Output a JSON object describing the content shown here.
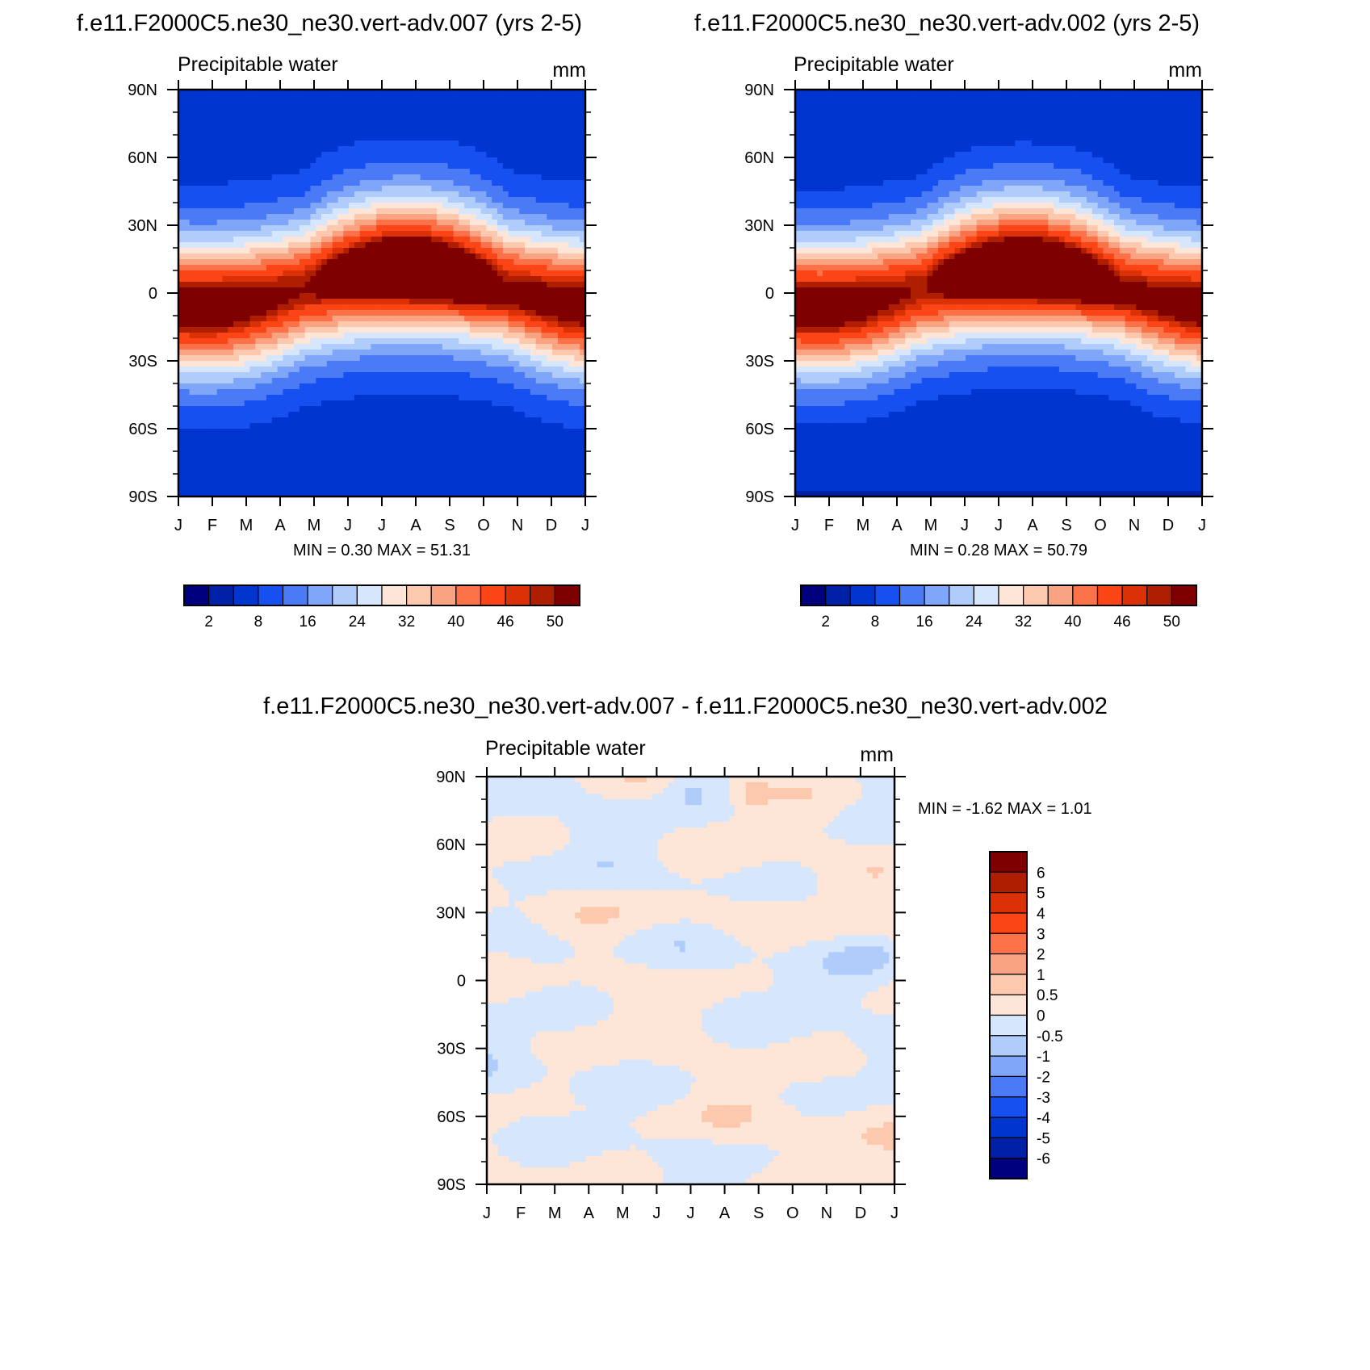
{
  "palette": {
    "abs": [
      "#00007f",
      "#0020a8",
      "#0035d0",
      "#1750f0",
      "#4a7af6",
      "#80a6fa",
      "#b0ccfb",
      "#d6e6fc",
      "#fde6d8",
      "#fcc8ae",
      "#f9a383",
      "#fb7148",
      "#fb4516",
      "#dc3106",
      "#b01e02",
      "#7f0000"
    ],
    "diff": [
      "#00007f",
      "#0020a8",
      "#0035d0",
      "#1750f0",
      "#4a7af6",
      "#80a6fa",
      "#b0ccfb",
      "#d6e6fc",
      "#fde6d8",
      "#fcc8ae",
      "#f9a383",
      "#fb7148",
      "#fb4516",
      "#dc3106",
      "#b01e02",
      "#7f0000"
    ]
  },
  "panels": {
    "p1": {
      "title": "f.e11.F2000C5.ne30_ne30.vert-adv.007 (yrs 2-5)",
      "left_label": "Precipitable water",
      "right_label": "mm",
      "minmax": "MIN =   0.30 MAX =  51.31"
    },
    "p2": {
      "title": "f.e11.F2000C5.ne30_ne30.vert-adv.002 (yrs 2-5)",
      "left_label": "Precipitable water",
      "right_label": "mm",
      "minmax": "MIN =   0.28 MAX =  50.79"
    },
    "p3": {
      "title": "f.e11.F2000C5.ne30_ne30.vert-adv.007 - f.e11.F2000C5.ne30_ne30.vert-adv.002",
      "left_label": "Precipitable water",
      "right_label": "mm",
      "minmax": "MIN =  -1.62 MAX =   1.01"
    }
  },
  "chart_data": [
    {
      "type": "heatmap",
      "title": "f.e11.F2000C5.ne30_ne30.vert-adv.007 (yrs 2-5)",
      "variable": "Precipitable water",
      "units": "mm",
      "x_ticks": [
        "J",
        "F",
        "M",
        "A",
        "M",
        "J",
        "J",
        "A",
        "S",
        "O",
        "N",
        "D",
        "J"
      ],
      "y_ticks": [
        "90N",
        "60N",
        "30N",
        "0",
        "30S",
        "60S",
        "90S"
      ],
      "y_range": [
        -90,
        90
      ],
      "levels": [
        "2",
        "8",
        "16",
        "24",
        "32",
        "40",
        "46",
        "50"
      ],
      "min": 0.3,
      "max": 51.31
    },
    {
      "type": "heatmap",
      "title": "f.e11.F2000C5.ne30_ne30.vert-adv.002 (yrs 2-5)",
      "variable": "Precipitable water",
      "units": "mm",
      "x_ticks": [
        "J",
        "F",
        "M",
        "A",
        "M",
        "J",
        "J",
        "A",
        "S",
        "O",
        "N",
        "D",
        "J"
      ],
      "y_ticks": [
        "90N",
        "60N",
        "30N",
        "0",
        "30S",
        "60S",
        "90S"
      ],
      "y_range": [
        -90,
        90
      ],
      "levels": [
        "2",
        "8",
        "16",
        "24",
        "32",
        "40",
        "46",
        "50"
      ],
      "min": 0.28,
      "max": 50.79
    },
    {
      "type": "heatmap",
      "title": "f.e11.F2000C5.ne30_ne30.vert-adv.007 - f.e11.F2000C5.ne30_ne30.vert-adv.002",
      "variable": "Precipitable water",
      "units": "mm",
      "x_ticks": [
        "J",
        "F",
        "M",
        "A",
        "M",
        "J",
        "J",
        "A",
        "S",
        "O",
        "N",
        "D",
        "J"
      ],
      "y_ticks": [
        "90N",
        "60N",
        "30N",
        "0",
        "30S",
        "60S",
        "90S"
      ],
      "y_range": [
        -90,
        90
      ],
      "levels": [
        "6",
        "5",
        "4",
        "3",
        "2",
        "1",
        "0.5",
        "0",
        "-0.5",
        "-1",
        "-2",
        "-3",
        "-4",
        "-5",
        "-6"
      ],
      "min": -1.62,
      "max": 1.01
    }
  ]
}
